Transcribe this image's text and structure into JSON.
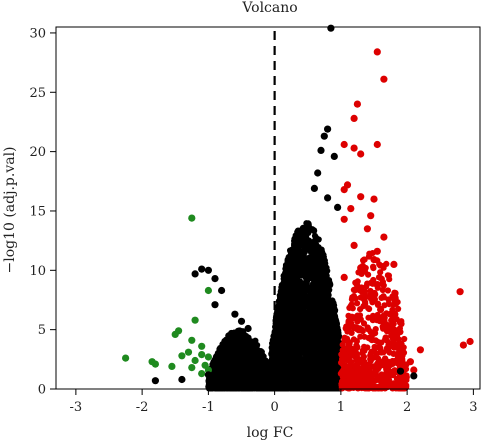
{
  "chart_data": {
    "type": "scatter",
    "title": "Volcano",
    "xlabel": "log FC",
    "ylabel": "−log10 (adj.p.val)",
    "xlim": [
      -3.3,
      3.1
    ],
    "ylim": [
      0,
      30.5
    ],
    "x_ticks": [
      "-3",
      "-2",
      "-1",
      "0",
      "1",
      "2",
      "3"
    ],
    "y_ticks": [
      "0",
      "5",
      "10",
      "15",
      "20",
      "25",
      "30"
    ],
    "grid": false,
    "legend": "none",
    "thresholds": {
      "vertical_dashed_line_x": 0
    },
    "colors": {
      "down": "#1f8a1f",
      "not_significant": "#000000",
      "up": "#dd0000"
    },
    "series": [
      {
        "group": "down",
        "color": "#1f8a1f",
        "points": [
          [
            -1.25,
            14.4
          ],
          [
            -1.0,
            8.3
          ],
          [
            -1.2,
            5.8
          ],
          [
            -1.45,
            4.9
          ],
          [
            -1.5,
            4.6
          ],
          [
            -1.25,
            4.1
          ],
          [
            -1.1,
            3.6
          ],
          [
            -1.3,
            3.1
          ],
          [
            -1.1,
            2.9
          ],
          [
            -1.0,
            2.7
          ],
          [
            -1.2,
            2.4
          ],
          [
            -1.05,
            2.0
          ],
          [
            -1.25,
            1.8
          ],
          [
            -1.0,
            1.6
          ],
          [
            -1.1,
            1.3
          ],
          [
            -1.55,
            1.9
          ],
          [
            -1.85,
            2.3
          ],
          [
            -1.8,
            2.1
          ],
          [
            -2.25,
            2.6
          ],
          [
            -1.4,
            2.8
          ]
        ]
      },
      {
        "group": "up",
        "color": "#dd0000",
        "points": [
          [
            1.55,
            28.4
          ],
          [
            1.65,
            26.1
          ],
          [
            1.25,
            24.0
          ],
          [
            1.2,
            22.8
          ],
          [
            1.55,
            20.6
          ],
          [
            1.2,
            20.3
          ],
          [
            1.3,
            19.8
          ],
          [
            1.05,
            20.6
          ],
          [
            1.1,
            17.2
          ],
          [
            1.05,
            16.8
          ],
          [
            1.3,
            16.2
          ],
          [
            1.5,
            16.0
          ],
          [
            1.15,
            15.2
          ],
          [
            1.45,
            14.6
          ],
          [
            1.65,
            12.8
          ],
          [
            1.05,
            14.3
          ],
          [
            1.4,
            13.5
          ],
          [
            1.2,
            12.1
          ],
          [
            1.55,
            11.6
          ],
          [
            1.8,
            10.5
          ],
          [
            1.5,
            10.9
          ],
          [
            1.3,
            10.2
          ],
          [
            2.8,
            8.2
          ],
          [
            2.95,
            4.0
          ],
          [
            2.85,
            3.7
          ],
          [
            2.2,
            3.3
          ],
          [
            2.05,
            2.3
          ],
          [
            2.1,
            1.6
          ],
          [
            1.9,
            2.9
          ],
          [
            1.7,
            4.9
          ],
          [
            1.6,
            6.7
          ],
          [
            1.9,
            5.6
          ],
          [
            1.75,
            6.3
          ],
          [
            1.8,
            3.8
          ],
          [
            1.55,
            8.8
          ],
          [
            1.05,
            9.4
          ],
          [
            1.35,
            7.6
          ],
          [
            1.2,
            6.0
          ]
        ]
      },
      {
        "group": "not_significant",
        "color": "#000000",
        "points": [
          [
            0.85,
            30.4
          ],
          [
            0.8,
            21.9
          ],
          [
            0.75,
            21.3
          ],
          [
            0.7,
            20.1
          ],
          [
            0.9,
            19.6
          ],
          [
            0.65,
            18.2
          ],
          [
            0.6,
            16.9
          ],
          [
            0.8,
            16.1
          ],
          [
            0.95,
            15.3
          ],
          [
            -1.1,
            10.1
          ],
          [
            -1.0,
            10.0
          ],
          [
            -1.2,
            9.7
          ],
          [
            -0.9,
            9.3
          ],
          [
            -0.8,
            8.3
          ],
          [
            -0.9,
            7.1
          ],
          [
            -0.6,
            6.3
          ],
          [
            -0.5,
            5.7
          ],
          [
            -0.4,
            5.1
          ],
          [
            -1.4,
            0.8
          ],
          [
            -1.8,
            0.7
          ],
          [
            -1.0,
            1.2
          ],
          [
            2.1,
            1.1
          ],
          [
            1.9,
            1.5
          ]
        ]
      }
    ],
    "density_clouds": [
      {
        "group": "not_significant",
        "x_range": [
          -0.05,
          1.0
        ],
        "peak_y": 14.0,
        "count": 3200
      },
      {
        "group": "not_significant",
        "x_range": [
          -1.0,
          -0.05
        ],
        "peak_y": 5.0,
        "count": 1300
      },
      {
        "group": "up",
        "x_range": [
          1.0,
          2.0
        ],
        "peak_y": 12.0,
        "count": 600
      }
    ]
  }
}
